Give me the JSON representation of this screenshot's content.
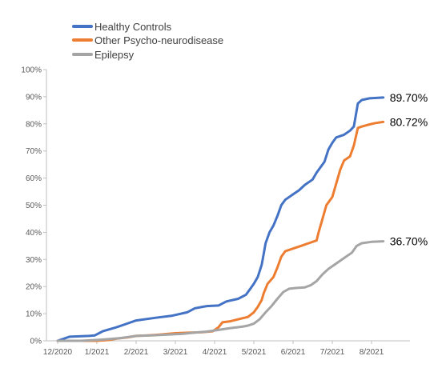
{
  "chart_data": {
    "type": "line",
    "title": "",
    "xlabel": "",
    "ylabel": "",
    "ylim": [
      0,
      100
    ],
    "y_ticks": [
      "0%",
      "10%",
      "20%",
      "30%",
      "40%",
      "50%",
      "60%",
      "70%",
      "80%",
      "90%",
      "100%"
    ],
    "x_ticks": [
      "12/2020",
      "1/2021",
      "2/2021",
      "3/2021",
      "4/2021",
      "5/2021",
      "6/2021",
      "7/2021",
      "8/2021"
    ],
    "grid": false,
    "legend_position": "top-left",
    "series": [
      {
        "name": "Healthy Controls",
        "color": "#4472C4",
        "end_label": "89.70%",
        "points": [
          [
            0,
            0
          ],
          [
            0.3,
            1.5
          ],
          [
            0.8,
            1.8
          ],
          [
            0.95,
            2.0
          ],
          [
            1.15,
            3.5
          ],
          [
            1.5,
            5.0
          ],
          [
            1.8,
            6.5
          ],
          [
            2.0,
            7.5
          ],
          [
            2.5,
            8.5
          ],
          [
            2.9,
            9.2
          ],
          [
            3.3,
            10.5
          ],
          [
            3.5,
            12.0
          ],
          [
            3.8,
            12.8
          ],
          [
            4.1,
            13.0
          ],
          [
            4.3,
            14.5
          ],
          [
            4.6,
            15.5
          ],
          [
            4.8,
            17.0
          ],
          [
            4.9,
            19.0
          ],
          [
            5.0,
            21.0
          ],
          [
            5.1,
            23.5
          ],
          [
            5.2,
            28.0
          ],
          [
            5.25,
            32.0
          ],
          [
            5.3,
            36.0
          ],
          [
            5.4,
            40.0
          ],
          [
            5.5,
            42.5
          ],
          [
            5.6,
            46.0
          ],
          [
            5.7,
            50.0
          ],
          [
            5.8,
            52.0
          ],
          [
            5.9,
            53.0
          ],
          [
            6.0,
            54.0
          ],
          [
            6.15,
            55.5
          ],
          [
            6.3,
            57.5
          ],
          [
            6.5,
            59.5
          ],
          [
            6.6,
            62.0
          ],
          [
            6.8,
            66.0
          ],
          [
            6.9,
            70.5
          ],
          [
            7.0,
            73.0
          ],
          [
            7.1,
            75.0
          ],
          [
            7.3,
            76.0
          ],
          [
            7.45,
            77.5
          ],
          [
            7.55,
            79.0
          ],
          [
            7.65,
            87.5
          ],
          [
            7.75,
            88.8
          ],
          [
            7.95,
            89.4
          ],
          [
            8.3,
            89.7
          ]
        ]
      },
      {
        "name": "Other Psycho-neurodisease",
        "color": "#ED7D31",
        "end_label": "80.72%",
        "points": [
          [
            0,
            0
          ],
          [
            1.0,
            0
          ],
          [
            1.3,
            0.3
          ],
          [
            1.5,
            0.8
          ],
          [
            1.8,
            1.3
          ],
          [
            2.0,
            1.8
          ],
          [
            2.3,
            2.0
          ],
          [
            2.6,
            2.3
          ],
          [
            3.0,
            2.8
          ],
          [
            3.4,
            3.0
          ],
          [
            3.7,
            3.2
          ],
          [
            3.95,
            3.5
          ],
          [
            4.1,
            5.0
          ],
          [
            4.2,
            6.8
          ],
          [
            4.4,
            7.2
          ],
          [
            4.7,
            8.3
          ],
          [
            4.85,
            8.8
          ],
          [
            5.0,
            10.5
          ],
          [
            5.1,
            12.5
          ],
          [
            5.2,
            15.0
          ],
          [
            5.25,
            17.5
          ],
          [
            5.35,
            21.0
          ],
          [
            5.5,
            23.5
          ],
          [
            5.6,
            27.0
          ],
          [
            5.7,
            31.0
          ],
          [
            5.8,
            33.0
          ],
          [
            6.0,
            34.0
          ],
          [
            6.2,
            35.0
          ],
          [
            6.4,
            36.0
          ],
          [
            6.6,
            37.0
          ],
          [
            6.65,
            40.0
          ],
          [
            6.75,
            45.0
          ],
          [
            6.85,
            50.0
          ],
          [
            7.0,
            53.0
          ],
          [
            7.1,
            58.0
          ],
          [
            7.2,
            63.0
          ],
          [
            7.3,
            66.5
          ],
          [
            7.45,
            68.0
          ],
          [
            7.55,
            72.0
          ],
          [
            7.65,
            78.5
          ],
          [
            7.75,
            79.0
          ],
          [
            7.95,
            79.8
          ],
          [
            8.1,
            80.3
          ],
          [
            8.3,
            80.72
          ]
        ]
      },
      {
        "name": "Epilepsy",
        "color": "#A5A5A5",
        "end_label": "36.70%",
        "points": [
          [
            0,
            0
          ],
          [
            0.6,
            0
          ],
          [
            1.2,
            0.5
          ],
          [
            1.6,
            1.0
          ],
          [
            2.0,
            1.8
          ],
          [
            2.4,
            2.0
          ],
          [
            2.8,
            2.3
          ],
          [
            3.2,
            2.6
          ],
          [
            3.5,
            3.0
          ],
          [
            3.8,
            3.4
          ],
          [
            4.1,
            4.0
          ],
          [
            4.4,
            4.7
          ],
          [
            4.7,
            5.2
          ],
          [
            4.85,
            5.6
          ],
          [
            5.0,
            6.3
          ],
          [
            5.15,
            8.0
          ],
          [
            5.3,
            10.5
          ],
          [
            5.45,
            12.8
          ],
          [
            5.6,
            15.5
          ],
          [
            5.75,
            18.0
          ],
          [
            5.9,
            19.2
          ],
          [
            6.1,
            19.5
          ],
          [
            6.3,
            19.7
          ],
          [
            6.45,
            20.5
          ],
          [
            6.6,
            22.0
          ],
          [
            6.75,
            24.5
          ],
          [
            6.9,
            26.5
          ],
          [
            7.05,
            28.0
          ],
          [
            7.2,
            29.5
          ],
          [
            7.35,
            31.0
          ],
          [
            7.5,
            32.5
          ],
          [
            7.62,
            35.0
          ],
          [
            7.75,
            36.0
          ],
          [
            8.0,
            36.5
          ],
          [
            8.3,
            36.7
          ]
        ]
      }
    ]
  }
}
